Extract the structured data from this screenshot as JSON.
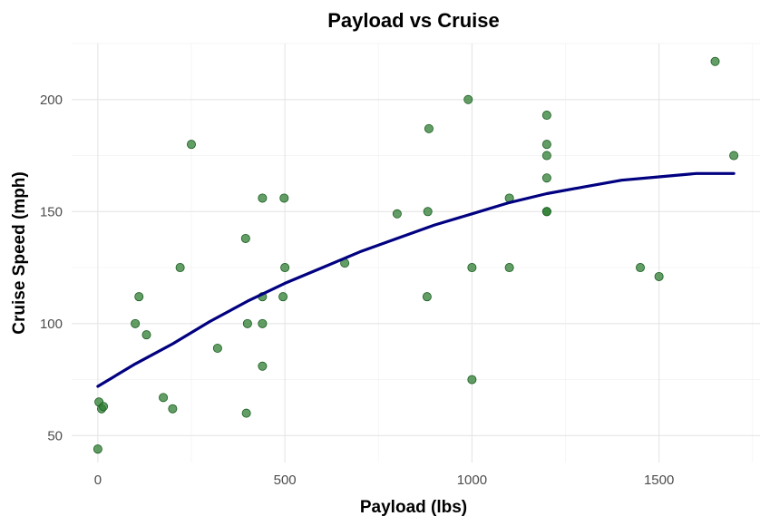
{
  "chart_data": {
    "type": "scatter",
    "title": "Payload vs Cruise",
    "xlabel": "Payload (lbs)",
    "ylabel": "Cruise Speed (mph)",
    "xlim": [
      -70,
      1770
    ],
    "ylim": [
      38,
      225
    ],
    "x_ticks": [
      0,
      500,
      1000,
      1500
    ],
    "y_ticks": [
      50,
      100,
      150,
      200
    ],
    "x_tick_labels": [
      "0",
      "500",
      "1000",
      "1500"
    ],
    "y_tick_labels": [
      "50",
      "100",
      "150",
      "200"
    ],
    "grid": true,
    "legend": "none",
    "colors": {
      "points": "#2e7d32",
      "trend": "#000080"
    },
    "points": [
      {
        "x": 0,
        "y": 44
      },
      {
        "x": 3,
        "y": 65
      },
      {
        "x": 10,
        "y": 62
      },
      {
        "x": 15,
        "y": 63
      },
      {
        "x": 100,
        "y": 100
      },
      {
        "x": 110,
        "y": 112
      },
      {
        "x": 130,
        "y": 95
      },
      {
        "x": 175,
        "y": 67
      },
      {
        "x": 200,
        "y": 62
      },
      {
        "x": 220,
        "y": 125
      },
      {
        "x": 250,
        "y": 180
      },
      {
        "x": 320,
        "y": 89
      },
      {
        "x": 395,
        "y": 138
      },
      {
        "x": 397,
        "y": 60
      },
      {
        "x": 400,
        "y": 100
      },
      {
        "x": 440,
        "y": 156
      },
      {
        "x": 440,
        "y": 112
      },
      {
        "x": 440,
        "y": 100
      },
      {
        "x": 440,
        "y": 81
      },
      {
        "x": 495,
        "y": 112
      },
      {
        "x": 498,
        "y": 156
      },
      {
        "x": 500,
        "y": 125
      },
      {
        "x": 660,
        "y": 127
      },
      {
        "x": 800,
        "y": 149
      },
      {
        "x": 880,
        "y": 112
      },
      {
        "x": 882,
        "y": 150
      },
      {
        "x": 885,
        "y": 187
      },
      {
        "x": 990,
        "y": 200
      },
      {
        "x": 1000,
        "y": 125
      },
      {
        "x": 1000,
        "y": 75
      },
      {
        "x": 1100,
        "y": 156
      },
      {
        "x": 1100,
        "y": 125
      },
      {
        "x": 1200,
        "y": 193
      },
      {
        "x": 1200,
        "y": 180
      },
      {
        "x": 1200,
        "y": 175
      },
      {
        "x": 1200,
        "y": 165
      },
      {
        "x": 1200,
        "y": 150
      },
      {
        "x": 1200,
        "y": 150
      },
      {
        "x": 1450,
        "y": 125
      },
      {
        "x": 1500,
        "y": 121
      },
      {
        "x": 1650,
        "y": 217
      },
      {
        "x": 1700,
        "y": 175
      }
    ],
    "trend": {
      "x": [
        0,
        100,
        200,
        300,
        400,
        500,
        600,
        700,
        800,
        900,
        1000,
        1100,
        1200,
        1300,
        1400,
        1500,
        1600,
        1700
      ],
      "y": [
        72,
        82,
        91,
        101,
        110,
        118,
        125,
        132,
        138,
        144,
        149,
        154,
        158,
        161,
        164,
        165.5,
        167,
        167
      ]
    }
  }
}
